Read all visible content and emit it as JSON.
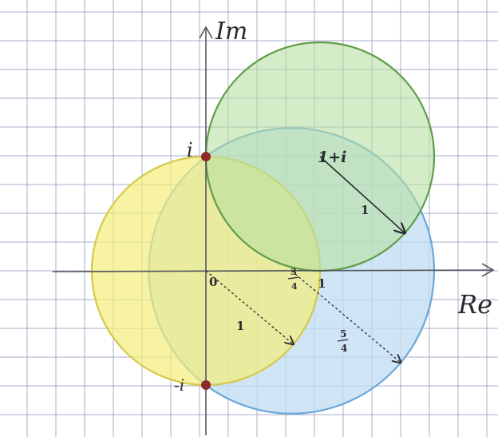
{
  "axes": {
    "imag_label": "Im",
    "real_label": "Re",
    "tick_zero": "0",
    "tick_one": "1",
    "tick_three_quarters_num": "3",
    "tick_three_quarters_den": "4"
  },
  "points": {
    "i_label": "i",
    "minus_i_label": "-i",
    "color": "#8e2a2a"
  },
  "circles": [
    {
      "key": "yellow",
      "center_re": 0,
      "center_im": 0,
      "radius": 1,
      "fill": "#f4ee7a",
      "stroke": "#d6c94a",
      "radius_label": "1"
    },
    {
      "key": "blue",
      "center_re": 0.75,
      "center_im": 0,
      "radius": 1.25,
      "fill": "#bfdcf3",
      "stroke": "#6aa7d9",
      "radius_label_num": "5",
      "radius_label_den": "4"
    },
    {
      "key": "green",
      "center_re": 1,
      "center_im": 1,
      "radius": 1,
      "fill": "#b7dfa2",
      "stroke": "#5f9e4a",
      "radius_label": "1",
      "center_label": "1+i"
    }
  ],
  "colors": {
    "grid": "#8d94b8",
    "axis": "#55585e",
    "ink": "#2a2a30"
  }
}
